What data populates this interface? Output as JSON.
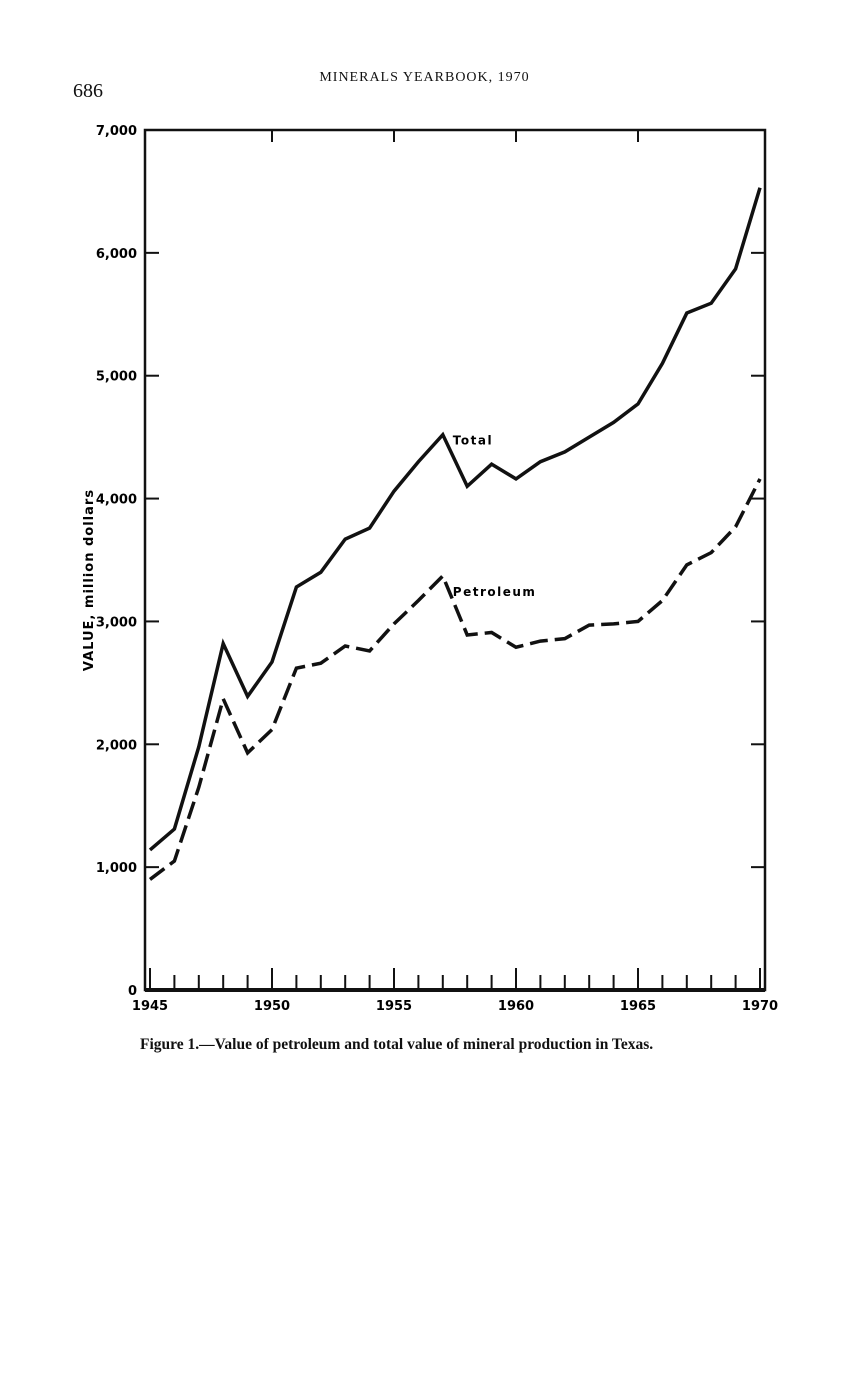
{
  "page_number": "686",
  "running_head": "MINERALS YEARBOOK, 1970",
  "caption": "Figure 1.—Value of petroleum and total value of mineral production in Texas.",
  "chart_data": {
    "type": "line",
    "title": "Figure 1.—Value of petroleum and total value of mineral production in Texas.",
    "xlabel": "",
    "ylabel": "VALUE, million dollars",
    "xlim": [
      1945,
      1970
    ],
    "ylim": [
      0,
      7000
    ],
    "x_ticks": [
      "1945",
      "1950",
      "1955",
      "1960",
      "1965",
      "1970"
    ],
    "y_ticks": [
      "0",
      "1,000",
      "2,000",
      "3,000",
      "4,000",
      "5,000",
      "6,000",
      "7,000"
    ],
    "grid": false,
    "x": [
      1945,
      1946,
      1947,
      1948,
      1949,
      1950,
      1951,
      1952,
      1953,
      1954,
      1955,
      1956,
      1957,
      1958,
      1959,
      1960,
      1961,
      1962,
      1963,
      1964,
      1965,
      1966,
      1967,
      1968,
      1969,
      1970
    ],
    "series": [
      {
        "name": "Total",
        "style": "solid",
        "values": [
          1140,
          1310,
          1980,
          2820,
          2390,
          2670,
          3280,
          3400,
          3670,
          3760,
          4060,
          4300,
          4520,
          4100,
          4280,
          4160,
          4300,
          4380,
          4500,
          4620,
          4770,
          5100,
          5510,
          5590,
          5870,
          6530
        ]
      },
      {
        "name": "Petroleum",
        "style": "dashed",
        "values": [
          900,
          1050,
          1650,
          2370,
          1930,
          2120,
          2620,
          2660,
          2800,
          2760,
          2980,
          3170,
          3370,
          2890,
          2910,
          2790,
          2840,
          2860,
          2970,
          2980,
          3000,
          3170,
          3460,
          3560,
          3770,
          4160
        ]
      }
    ]
  }
}
